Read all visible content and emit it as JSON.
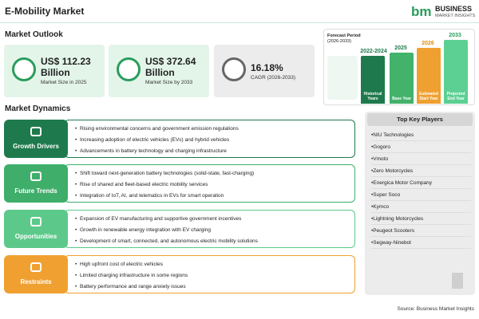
{
  "header": {
    "title": "E-Mobility Market",
    "logo_name": "BUSINESS",
    "logo_sub": "MARKET INSIGHTS"
  },
  "outlook": {
    "title": "Market Outlook",
    "cards": [
      {
        "value": "US$ 112.23",
        "unit": "Billion",
        "label": "Market Size in 2025"
      },
      {
        "value": "US$ 372.64",
        "unit": "Billion",
        "label": "Market Size by 2033"
      },
      {
        "value": "16.18%",
        "label": "CAGR (2026-2033)"
      }
    ]
  },
  "timeline": {
    "title": "Forecast Period",
    "subtitle": "(2026-2033)",
    "bars": [
      {
        "year": "2022-2024",
        "label": "Historical Years"
      },
      {
        "year": "2025",
        "label": "Base Year"
      },
      {
        "year": "2026",
        "label": "Estimated Start Year"
      },
      {
        "year": "2033",
        "label": "Projected End Year"
      }
    ]
  },
  "dynamics": {
    "title": "Market Dynamics",
    "groups": [
      {
        "name": "Growth Drivers",
        "items": [
          "Rising environmental concerns and government emission regulations",
          "Increasing adoption of electric vehicles (EVs) and hybrid vehicles",
          "Advancements in battery technology and charging infrastructure"
        ]
      },
      {
        "name": "Future Trends",
        "items": [
          "Shift toward next-generation battery technologies (solid-state, fast-charging)",
          "Rise of shared and fleet-based electric mobility services",
          "Integration of IoT, AI, and telematics in EVs for smart operation"
        ]
      },
      {
        "name": "Opportunities",
        "items": [
          "Expansion of EV manufacturing and supportive government incentives",
          "Growth in renewable energy integration with EV charging",
          "Development of smart, connected, and autonomous electric mobility solutions"
        ]
      },
      {
        "name": "Restraints",
        "items": [
          "High upfront cost of electric vehicles",
          "Limited charging infrastructure in some regions",
          "Battery performance and range anxiety issues"
        ]
      }
    ]
  },
  "players": {
    "title": "Top Key Players",
    "items": [
      "NIU Technologies",
      "Gogoro",
      "Vmoto",
      "Zero Motorcycles",
      "Energica Motor Company",
      "Super Soco",
      "Kymco",
      "Lightning Motorcycles",
      "Peugeot Scooters",
      "Segway-Ninebot"
    ]
  },
  "source": "Source: Business Market Insights"
}
